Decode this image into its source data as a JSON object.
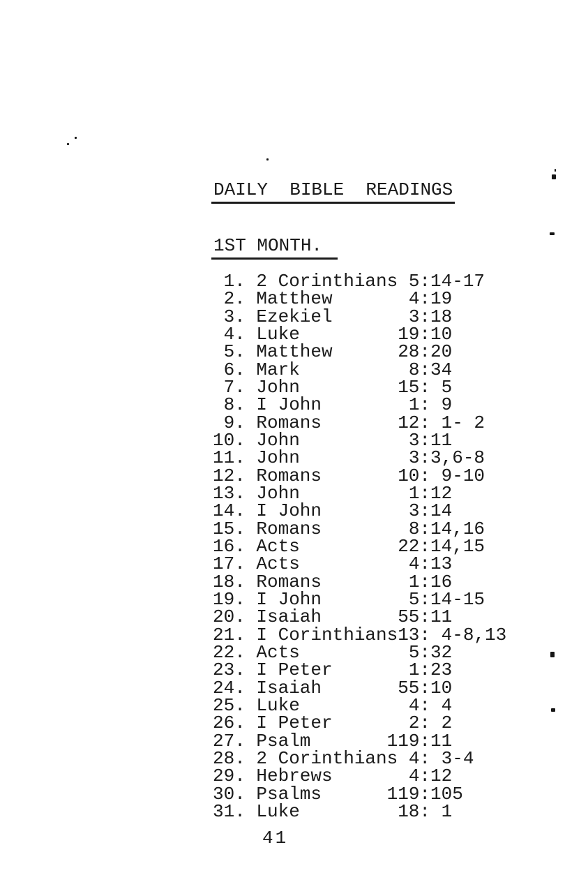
{
  "doc": {
    "title": "DAILY  BIBLE  READINGS",
    "section_heading": "1ST MONTH.",
    "page_number": "41",
    "readings": [
      {
        "day": "1.",
        "book": "2 Corinthians",
        "chapter": "5",
        "rest": ":14-17"
      },
      {
        "day": "2.",
        "book": "Matthew",
        "chapter": "4",
        "rest": ":19"
      },
      {
        "day": "3.",
        "book": "Ezekiel",
        "chapter": "3",
        "rest": ":18"
      },
      {
        "day": "4.",
        "book": "Luke",
        "chapter": "19",
        "rest": ":10"
      },
      {
        "day": "5.",
        "book": "Matthew",
        "chapter": "28",
        "rest": ":20"
      },
      {
        "day": "6.",
        "book": "Mark",
        "chapter": "8",
        "rest": ":34"
      },
      {
        "day": "7.",
        "book": "John",
        "chapter": "15",
        "rest": ": 5"
      },
      {
        "day": "8.",
        "book": "I John",
        "chapter": "1",
        "rest": ": 9"
      },
      {
        "day": "9.",
        "book": "Romans",
        "chapter": "12",
        "rest": ": 1- 2"
      },
      {
        "day": "10.",
        "book": "John",
        "chapter": "3",
        "rest": ":11"
      },
      {
        "day": "11.",
        "book": "John",
        "chapter": "3",
        "rest": ":3,6-8"
      },
      {
        "day": "12.",
        "book": "Romans",
        "chapter": "10",
        "rest": ": 9-10"
      },
      {
        "day": "13.",
        "book": "John",
        "chapter": "1",
        "rest": ":12"
      },
      {
        "day": "14.",
        "book": "I John",
        "chapter": "3",
        "rest": ":14"
      },
      {
        "day": "15.",
        "book": "Romans",
        "chapter": "8",
        "rest": ":14,16"
      },
      {
        "day": "16.",
        "book": "Acts",
        "chapter": "22",
        "rest": ":14,15"
      },
      {
        "day": "17.",
        "book": "Acts",
        "chapter": "4",
        "rest": ":13"
      },
      {
        "day": "18.",
        "book": "Romans",
        "chapter": "1",
        "rest": ":16"
      },
      {
        "day": "19.",
        "book": "I John",
        "chapter": "5",
        "rest": ":14-15"
      },
      {
        "day": "20.",
        "book": "Isaiah",
        "chapter": "55",
        "rest": ":11"
      },
      {
        "day": "21.",
        "book": "I Corinthians",
        "chapter": "13",
        "rest": ": 4-8,13"
      },
      {
        "day": "22.",
        "book": "Acts",
        "chapter": "5",
        "rest": ":32"
      },
      {
        "day": "23.",
        "book": "I Peter",
        "chapter": "1",
        "rest": ":23"
      },
      {
        "day": "24.",
        "book": "Isaiah",
        "chapter": "55",
        "rest": ":10"
      },
      {
        "day": "25.",
        "book": "Luke",
        "chapter": "4",
        "rest": ": 4"
      },
      {
        "day": "26.",
        "book": "I Peter",
        "chapter": "2",
        "rest": ": 2"
      },
      {
        "day": "27.",
        "book": "Psalm",
        "chapter": "119",
        "rest": ":11"
      },
      {
        "day": "28.",
        "book": "2 Corinthians",
        "chapter": "4",
        "rest": ": 3-4"
      },
      {
        "day": "29.",
        "book": "Hebrews",
        "chapter": "4",
        "rest": ":12"
      },
      {
        "day": "30.",
        "book": "Psalms",
        "chapter": "119",
        "rest": ":105"
      },
      {
        "day": "31.",
        "book": "Luke",
        "chapter": "18",
        "rest": ": 1"
      }
    ]
  }
}
